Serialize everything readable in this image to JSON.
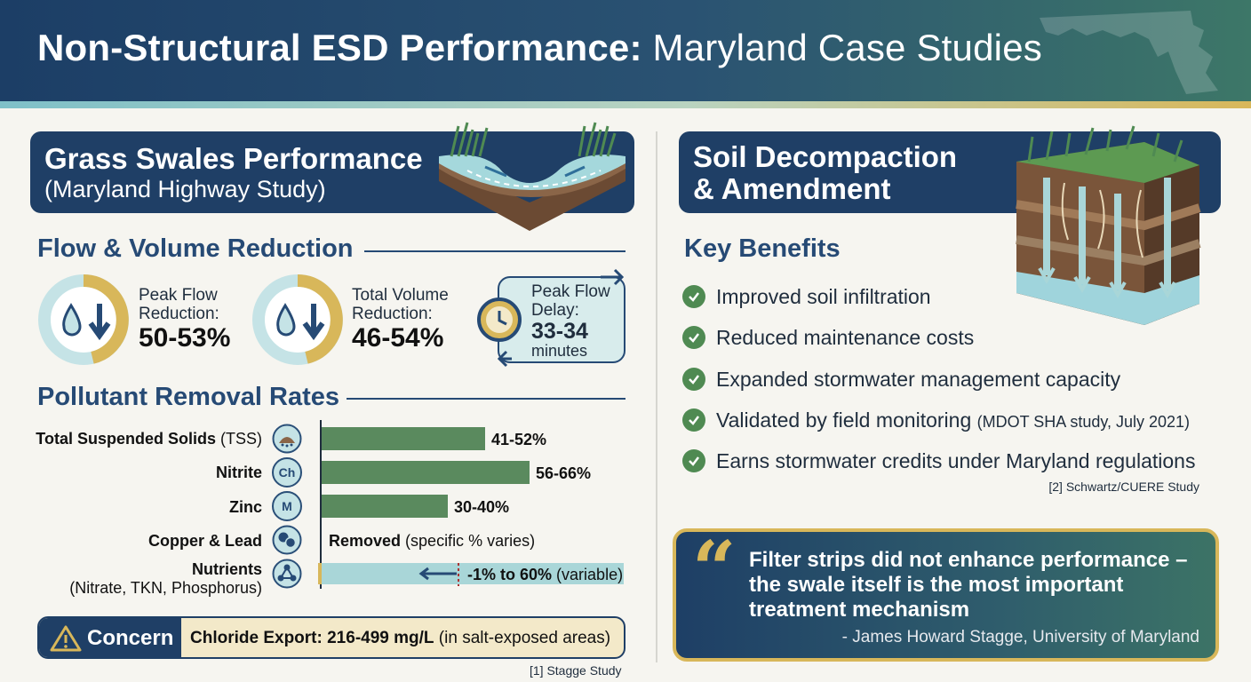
{
  "header": {
    "title_bold": "Non-Structural ESD Performance:",
    "title_light": "Maryland Case Studies"
  },
  "left": {
    "banner": {
      "title": "Grass Swales Performance",
      "subtitle": "(Maryland Highway Study)"
    },
    "flow": {
      "title": "Flow & Volume Reduction",
      "peak": {
        "label_1": "Peak Flow",
        "label_2": "Reduction:",
        "value": "50-53%"
      },
      "volume": {
        "label_1": "Total Volume",
        "label_2": "Reduction:",
        "value": "46-54%"
      },
      "delay": {
        "label_1": "Peak Flow",
        "label_2": "Delay:",
        "value": "33-34",
        "unit": "minutes"
      }
    },
    "pollutant": {
      "title": "Pollutant Removal Rates",
      "rows": [
        {
          "name": "Total Suspended Solids",
          "abbr": "(TSS)",
          "icon": "sediment-icon",
          "value": "41-52%",
          "fraction": 0.52
        },
        {
          "name": "Nitrite",
          "icon_text": "Ch",
          "icon": "chemistry-icon",
          "value": "56-66%",
          "fraction": 0.66
        },
        {
          "name": "Zinc",
          "icon_text": "M",
          "icon": "metal-icon",
          "value": "30-40%",
          "fraction": 0.4
        },
        {
          "name": "Copper & Lead",
          "icon": "coins-icon",
          "note_bold": "Removed",
          "note": "(specific % varies)"
        },
        {
          "name": "Nutrients",
          "sub": "(Nitrate, TKN, Phosphorus)",
          "icon": "molecule-icon",
          "value": "-1% to 60%",
          "note": "(variable)",
          "min": -1,
          "max": 60
        }
      ]
    },
    "concern": {
      "label": "Concern",
      "text_bold": "Chloride Export: 216-499 mg/L",
      "text": "(in salt-exposed areas)"
    },
    "citation": "[1] Stagge Study"
  },
  "right": {
    "banner": {
      "title_1": "Soil Decompaction",
      "title_2": "& Amendment"
    },
    "benefits_title": "Key Benefits",
    "benefits": [
      {
        "text": "Improved soil infiltration"
      },
      {
        "text": "Reduced maintenance costs"
      },
      {
        "text": "Expanded stormwater management capacity"
      },
      {
        "text": "Validated by field monitoring",
        "small": "(MDOT SHA study, July 2021)"
      },
      {
        "text": "Earns stormwater credits under Maryland regulations"
      }
    ],
    "citation": "[2] Schwartz/CUERE Study",
    "quote": {
      "text": "Filter strips did not enhance performance – the swale itself is the most important treatment mechanism",
      "author": "- James Howard Stagge, University of Maryland"
    }
  },
  "colors": {
    "navy": "#1f3f66",
    "gold": "#d8b75a",
    "teal_light": "#c5e3e6",
    "green_bar": "#5a8a5e"
  }
}
